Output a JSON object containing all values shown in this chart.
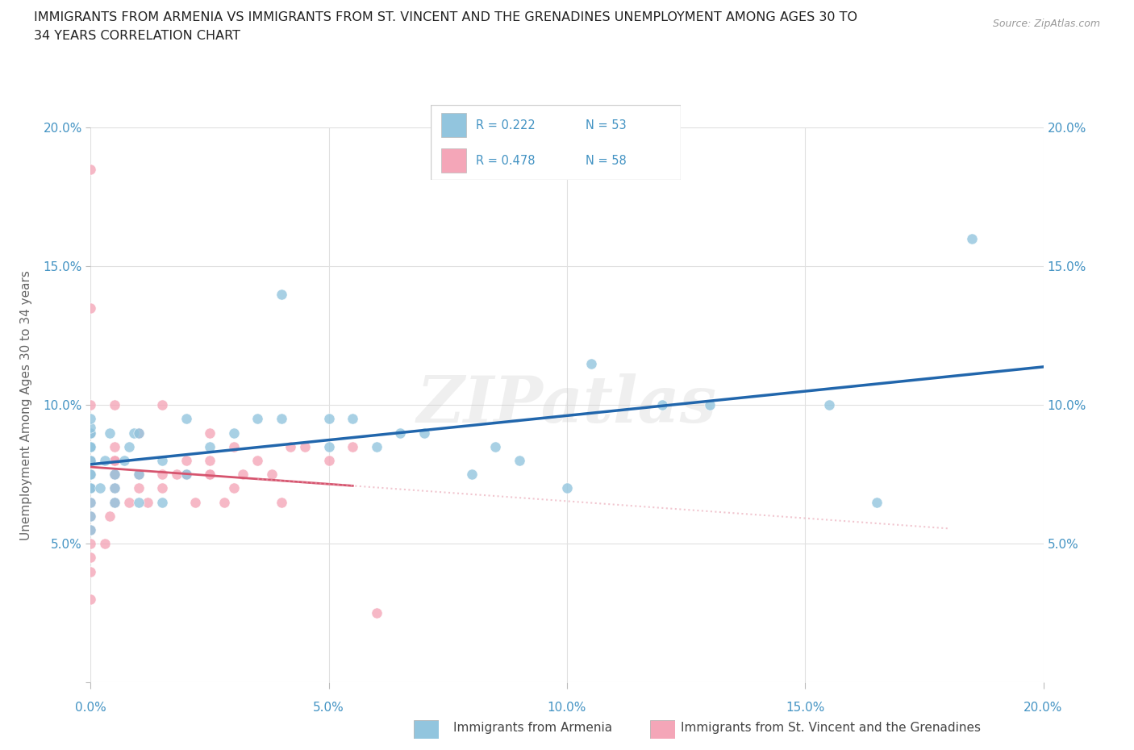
{
  "title_line1": "IMMIGRANTS FROM ARMENIA VS IMMIGRANTS FROM ST. VINCENT AND THE GRENADINES UNEMPLOYMENT AMONG AGES 30 TO",
  "title_line2": "34 YEARS CORRELATION CHART",
  "source": "Source: ZipAtlas.com",
  "ylabel": "Unemployment Among Ages 30 to 34 years",
  "xlim": [
    0.0,
    0.2
  ],
  "ylim": [
    0.0,
    0.2
  ],
  "xticks": [
    0.0,
    0.05,
    0.1,
    0.15,
    0.2
  ],
  "yticks": [
    0.0,
    0.05,
    0.1,
    0.15,
    0.2
  ],
  "watermark": "ZIPatlas",
  "blue_color": "#92c5de",
  "pink_color": "#f4a6b8",
  "blue_line_color": "#2166ac",
  "pink_line_color": "#d6546e",
  "pink_dot_color": "#e8a0b0",
  "background_color": "#ffffff",
  "grid_color": "#e0e0e0",
  "title_color": "#222222",
  "tick_color": "#4393c3",
  "legend_text_color": "#4393c3",
  "armenia_x": [
    0.0,
    0.0,
    0.0,
    0.0,
    0.0,
    0.0,
    0.0,
    0.0,
    0.0,
    0.0,
    0.0,
    0.0,
    0.0,
    0.0,
    0.0,
    0.0,
    0.002,
    0.003,
    0.004,
    0.005,
    0.005,
    0.005,
    0.007,
    0.008,
    0.009,
    0.01,
    0.01,
    0.01,
    0.015,
    0.015,
    0.02,
    0.02,
    0.025,
    0.03,
    0.035,
    0.04,
    0.04,
    0.05,
    0.05,
    0.055,
    0.06,
    0.065,
    0.07,
    0.08,
    0.085,
    0.09,
    0.1,
    0.105,
    0.12,
    0.13,
    0.155,
    0.165,
    0.185
  ],
  "armenia_y": [
    0.055,
    0.06,
    0.065,
    0.07,
    0.07,
    0.075,
    0.075,
    0.08,
    0.08,
    0.085,
    0.085,
    0.085,
    0.09,
    0.09,
    0.092,
    0.095,
    0.07,
    0.08,
    0.09,
    0.065,
    0.07,
    0.075,
    0.08,
    0.085,
    0.09,
    0.065,
    0.075,
    0.09,
    0.065,
    0.08,
    0.075,
    0.095,
    0.085,
    0.09,
    0.095,
    0.095,
    0.14,
    0.085,
    0.095,
    0.095,
    0.085,
    0.09,
    0.09,
    0.075,
    0.085,
    0.08,
    0.07,
    0.115,
    0.1,
    0.1,
    0.1,
    0.065,
    0.16
  ],
  "stvincent_x": [
    0.0,
    0.0,
    0.0,
    0.0,
    0.0,
    0.0,
    0.0,
    0.0,
    0.0,
    0.0,
    0.0,
    0.0,
    0.0,
    0.0,
    0.0,
    0.0,
    0.0,
    0.0,
    0.0,
    0.0,
    0.003,
    0.004,
    0.005,
    0.005,
    0.005,
    0.005,
    0.005,
    0.005,
    0.005,
    0.005,
    0.008,
    0.01,
    0.01,
    0.01,
    0.012,
    0.015,
    0.015,
    0.015,
    0.018,
    0.02,
    0.02,
    0.022,
    0.025,
    0.025,
    0.025,
    0.025,
    0.028,
    0.03,
    0.03,
    0.032,
    0.035,
    0.038,
    0.04,
    0.042,
    0.045,
    0.05,
    0.055,
    0.06
  ],
  "stvincent_y": [
    0.03,
    0.04,
    0.045,
    0.05,
    0.055,
    0.06,
    0.065,
    0.07,
    0.07,
    0.075,
    0.075,
    0.08,
    0.08,
    0.085,
    0.085,
    0.09,
    0.09,
    0.1,
    0.135,
    0.185,
    0.05,
    0.06,
    0.065,
    0.07,
    0.075,
    0.075,
    0.08,
    0.08,
    0.085,
    0.1,
    0.065,
    0.07,
    0.075,
    0.09,
    0.065,
    0.07,
    0.075,
    0.1,
    0.075,
    0.075,
    0.08,
    0.065,
    0.075,
    0.075,
    0.08,
    0.09,
    0.065,
    0.07,
    0.085,
    0.075,
    0.08,
    0.075,
    0.065,
    0.085,
    0.085,
    0.08,
    0.085,
    0.025
  ]
}
